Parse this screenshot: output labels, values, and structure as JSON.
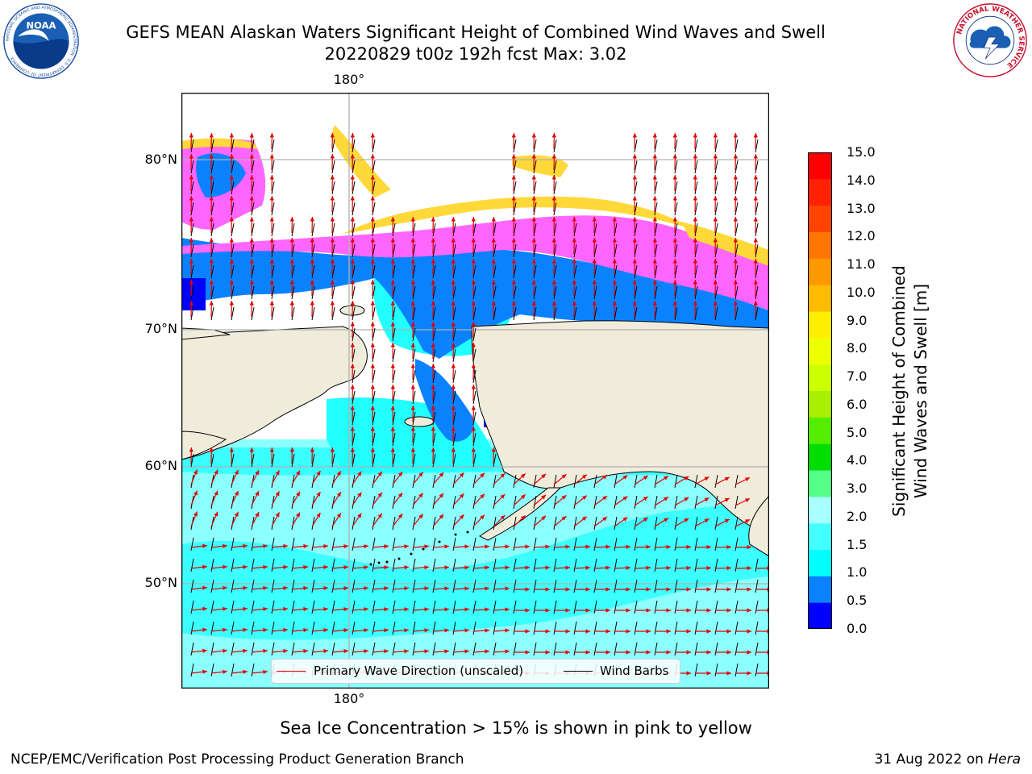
{
  "header": {
    "title_line1": "GEFS MEAN Alaskan Waters Significant Height of Combined Wind Waves and Swell",
    "title_line2": "20220829 t00z 192h fcst   Max: 3.02"
  },
  "logos": {
    "noaa_text": "NOAA",
    "noaa_ring_text": "NATIONAL OCEANIC AND ATMOSPHERIC ADMINISTRATION · U.S. DEPARTMENT OF COMMERCE",
    "nws_ring_text": "NATIONAL WEATHER SERVICE"
  },
  "map": {
    "lon_labels": {
      "top": "180°",
      "bottom": "180°"
    },
    "lat_labels": [
      "80°N",
      "70°N",
      "60°N",
      "50°N"
    ],
    "colors": {
      "land": "#efecdc",
      "ice_edge_yellow": "#ffd83a",
      "ice_magenta": "#ff66ff",
      "wave_blue": "#0a82ff",
      "wave_dark_blue": "#0000ff",
      "wave_cyan": "#22ffff",
      "wave_light_cyan": "#8cffff",
      "arrow_red": "#e00000",
      "barb_black": "#000000",
      "grid": "#b0b0b0"
    }
  },
  "colorbar": {
    "ticks": [
      "15.0",
      "14.0",
      "13.0",
      "12.0",
      "11.0",
      "10.0",
      "9.0",
      "8.0",
      "7.0",
      "6.0",
      "5.0",
      "4.0",
      "3.0",
      "2.0",
      "1.5",
      "1.0",
      "0.5",
      "0.0"
    ],
    "colors_bottom_to_top": [
      "#0000ff",
      "#0a82ff",
      "#00ffff",
      "#44ffff",
      "#aaffff",
      "#55ff88",
      "#00dd00",
      "#55ee00",
      "#aaee00",
      "#ccff00",
      "#eeff00",
      "#ffee00",
      "#ffbb00",
      "#ff9900",
      "#ff7700",
      "#ff4400",
      "#ff2200",
      "#ff0000"
    ],
    "label_line1": "Significant Height of Combined",
    "label_line2": "Wind Waves and Swell [m]"
  },
  "legend": {
    "primary_wave": "Primary Wave Direction (unscaled)",
    "wind_barbs": "Wind Barbs"
  },
  "footer": {
    "note": "Sea Ice Concentration > 15% is shown in pink to yellow",
    "credit": "NCEP/EMC/Verification Post Processing Product Generation Branch",
    "date": "31 Aug 2022 on",
    "machine": "Hera"
  }
}
